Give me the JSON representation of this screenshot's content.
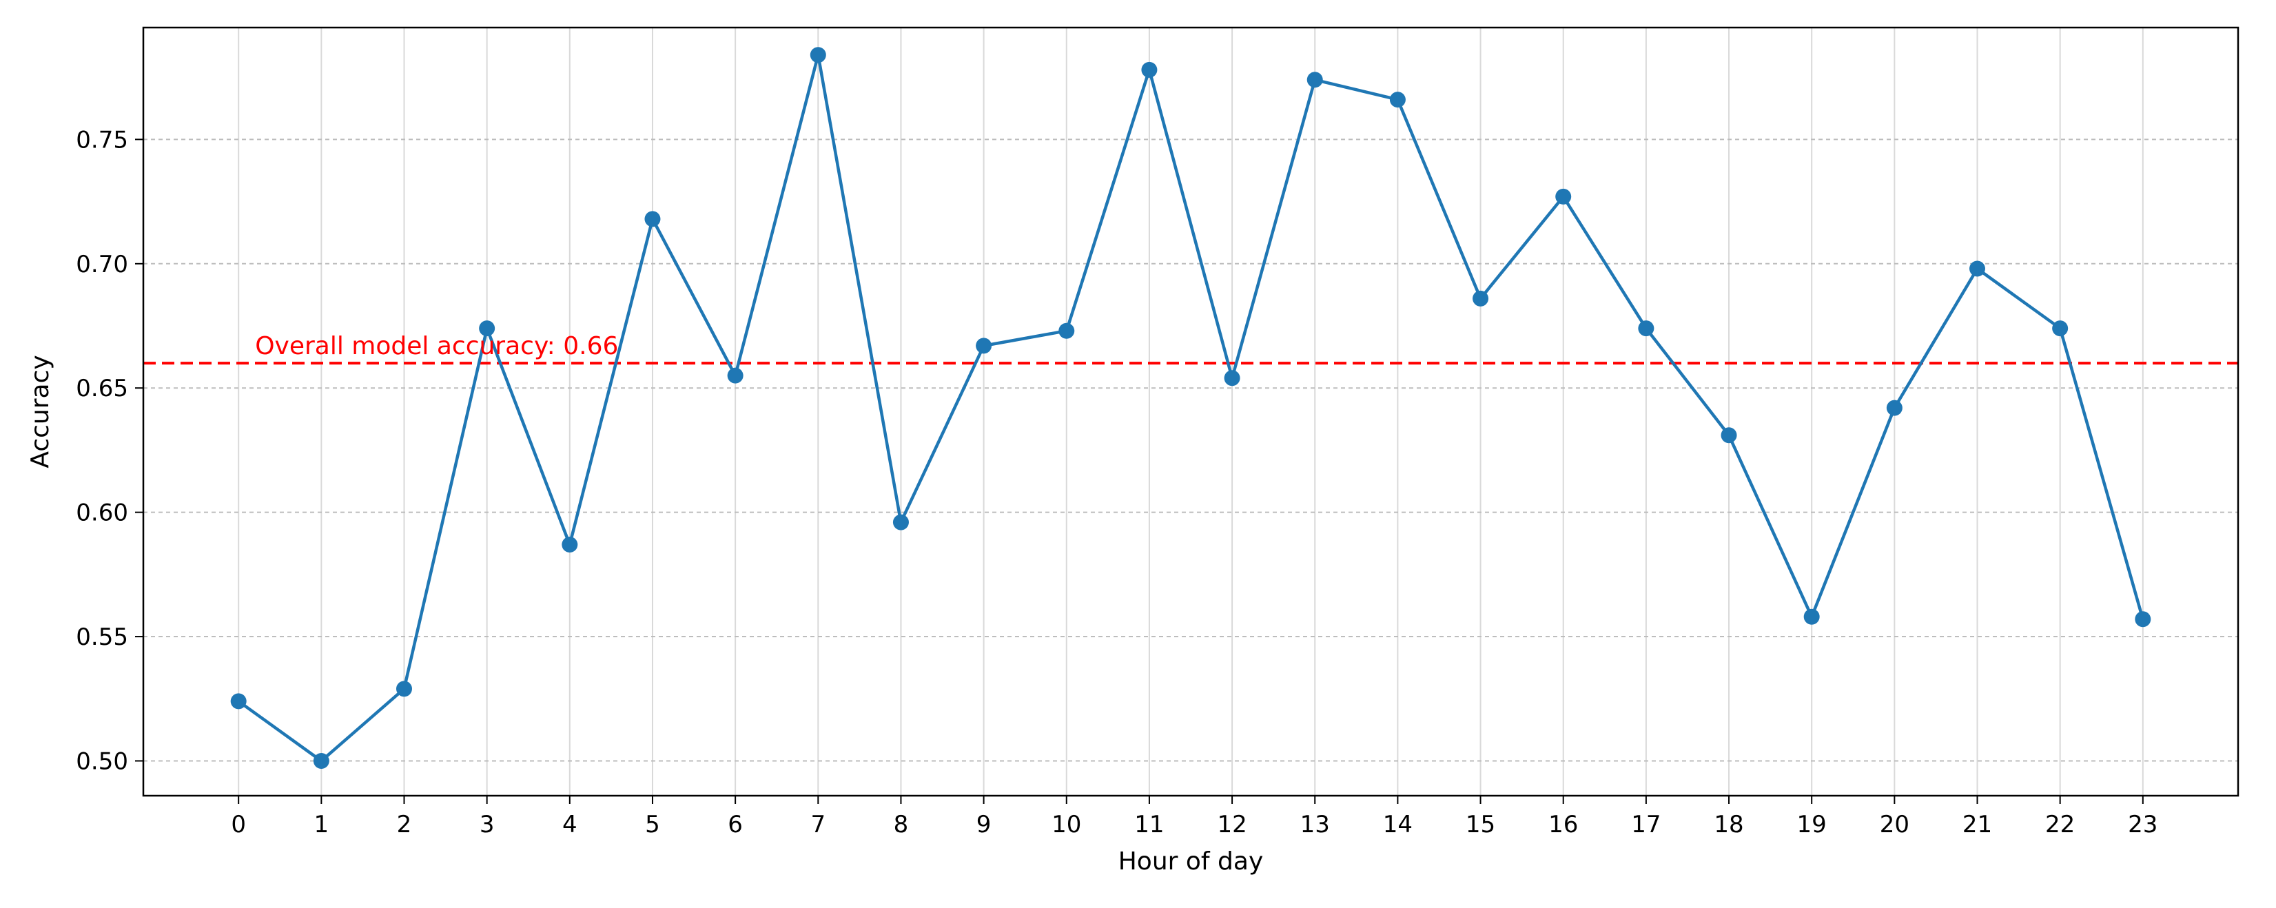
{
  "chart_data": {
    "type": "line",
    "title": "",
    "xlabel": "Hour of day",
    "ylabel": "Accuracy",
    "x": [
      0,
      1,
      2,
      3,
      4,
      5,
      6,
      7,
      8,
      9,
      10,
      11,
      12,
      13,
      14,
      15,
      16,
      17,
      18,
      19,
      20,
      21,
      22,
      23
    ],
    "series": [
      {
        "values": [
          0.524,
          0.5,
          0.529,
          0.674,
          0.587,
          0.718,
          0.655,
          0.784,
          0.596,
          0.667,
          0.673,
          0.778,
          0.654,
          0.774,
          0.766,
          0.686,
          0.727,
          0.674,
          0.631,
          0.558,
          0.642,
          0.698,
          0.674,
          0.557
        ],
        "color": "#1f77b4",
        "marker": "circle"
      }
    ],
    "xticks": [
      "0",
      "1",
      "2",
      "3",
      "4",
      "5",
      "6",
      "7",
      "8",
      "9",
      "10",
      "11",
      "12",
      "13",
      "14",
      "15",
      "16",
      "17",
      "18",
      "19",
      "20",
      "21",
      "22",
      "23"
    ],
    "yticks": [
      "0.50",
      "0.55",
      "0.60",
      "0.65",
      "0.70",
      "0.75"
    ],
    "ytick_values": [
      0.5,
      0.55,
      0.6,
      0.65,
      0.7,
      0.75
    ],
    "xlim": [
      -1.15,
      24.15
    ],
    "ylim": [
      0.486,
      0.795
    ],
    "reference_line": {
      "value": 0.66,
      "label": "Overall model accuracy: 0.66",
      "color": "#ff0000",
      "style": "dashed"
    },
    "grid": true
  }
}
